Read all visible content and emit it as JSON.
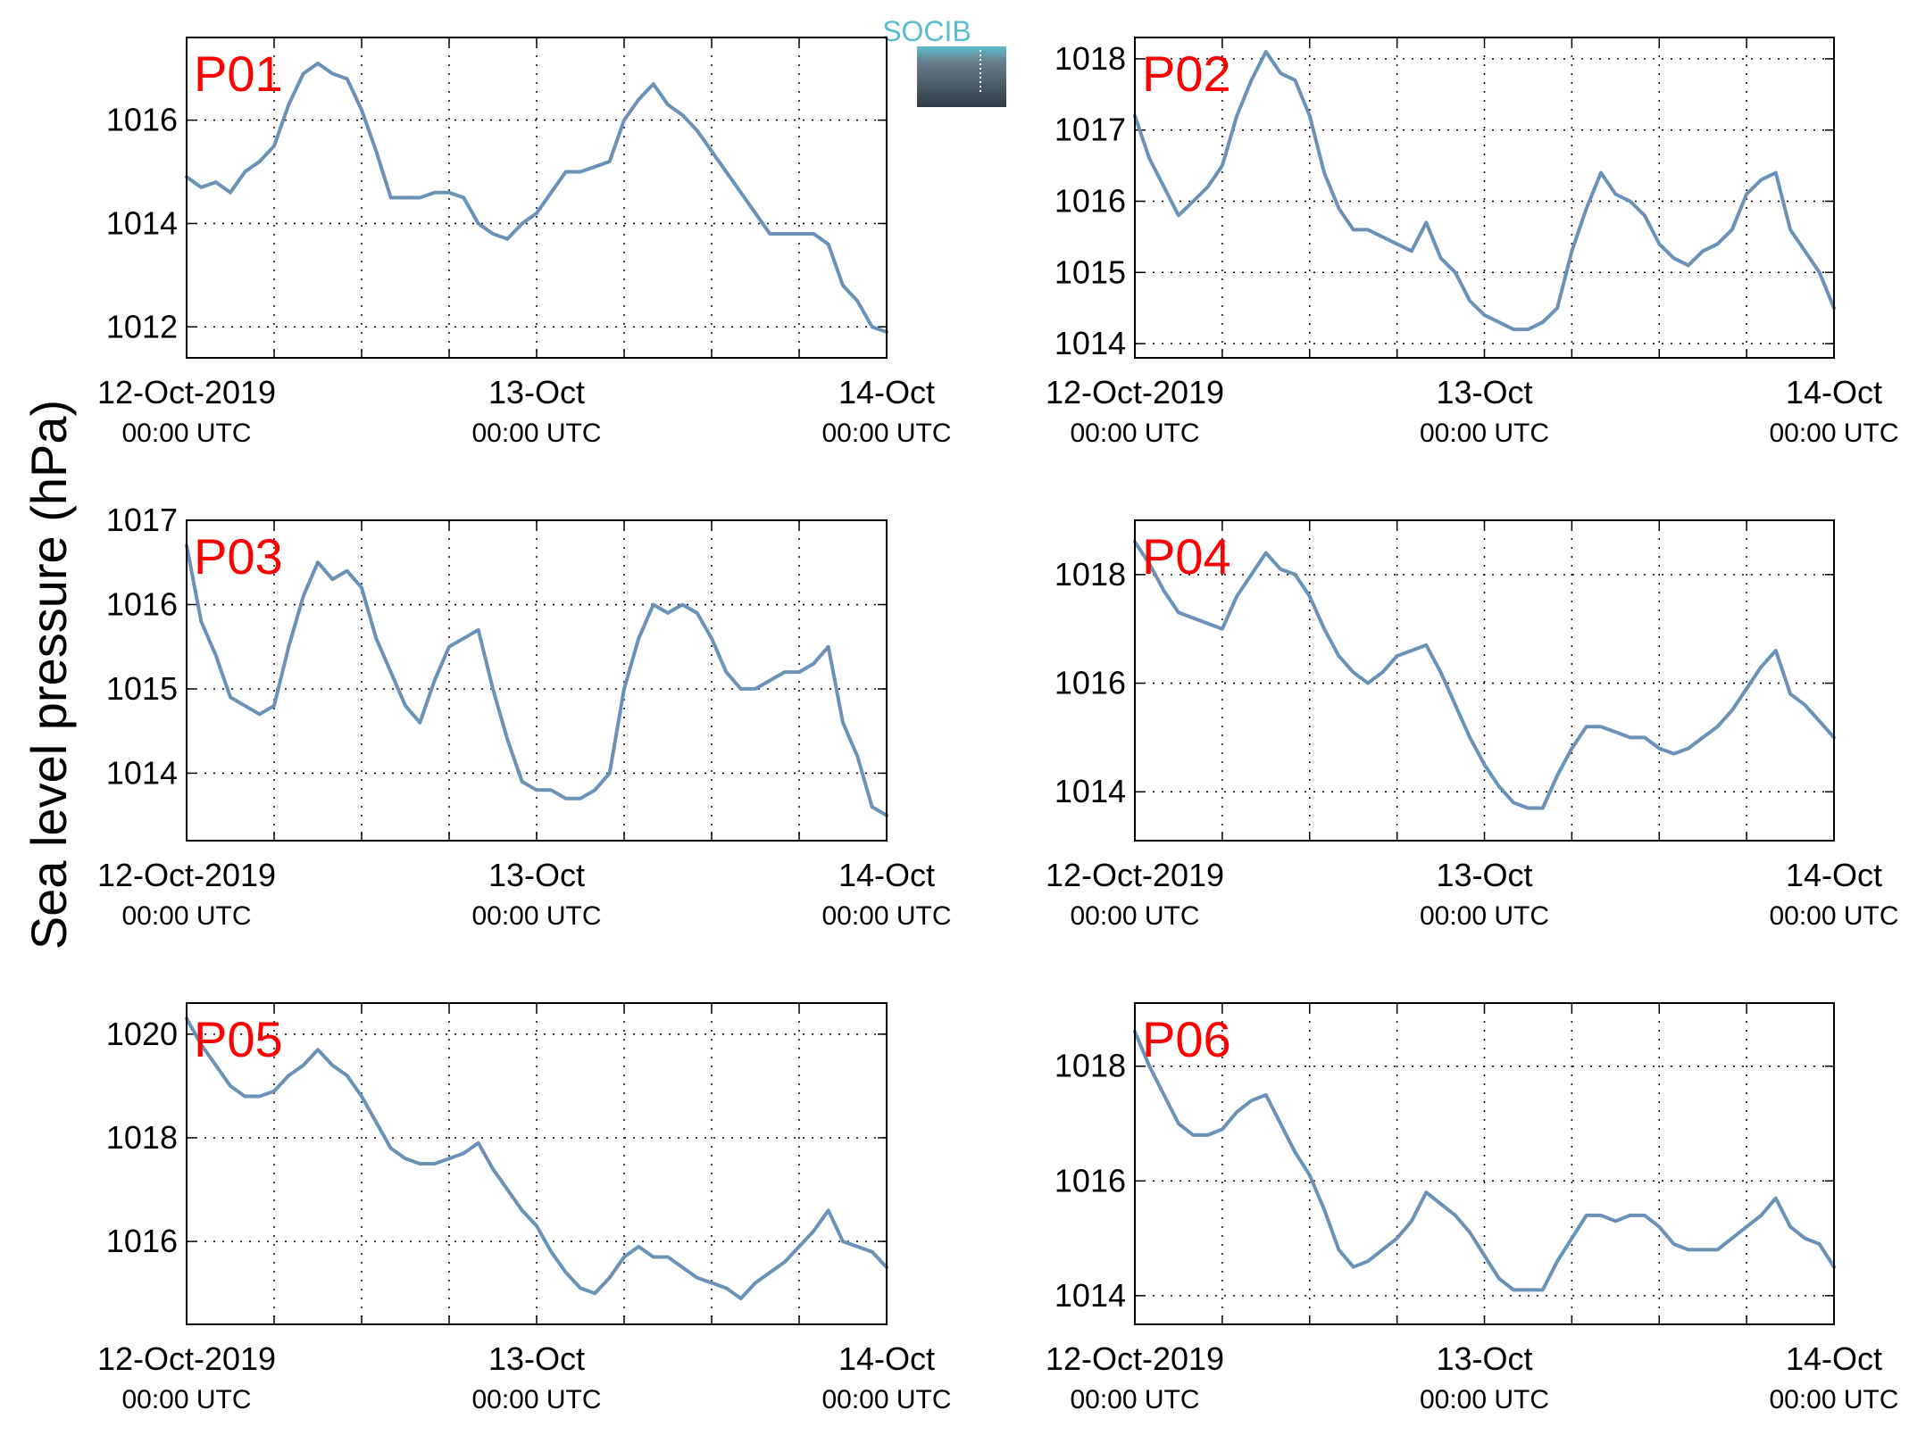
{
  "logo": {
    "text": "SOCIB",
    "color": "#5bbccc"
  },
  "ylabel": "Sea level pressure (hPa)",
  "colors": {
    "line": "#6a92b8",
    "label": "#ff0000"
  },
  "x_axis": {
    "ticks": [
      {
        "x": 0,
        "label": "12-Oct-2019",
        "sub": "00:00 UTC"
      },
      {
        "x": 24,
        "label": "13-Oct",
        "sub": "00:00 UTC"
      },
      {
        "x": 48,
        "label": "14-Oct",
        "sub": "00:00 UTC"
      }
    ],
    "grid_hours": [
      6,
      12,
      18,
      24,
      30,
      36,
      42
    ]
  },
  "chart_data": [
    {
      "type": "line",
      "name": "P01",
      "grid": true,
      "xlim": [
        0,
        48
      ],
      "ylim": [
        1011.4,
        1017.6
      ],
      "yticks": [
        1012,
        1014,
        1016
      ],
      "x": [
        0,
        1,
        2,
        3,
        4,
        5,
        6,
        7,
        8,
        9,
        10,
        11,
        12,
        13,
        14,
        15,
        16,
        17,
        18,
        19,
        20,
        21,
        22,
        23,
        24,
        25,
        26,
        27,
        28,
        29,
        30,
        31,
        32,
        33,
        34,
        35,
        36,
        37,
        38,
        39,
        40,
        41,
        42,
        43,
        44,
        45,
        46,
        47,
        48
      ],
      "values": [
        1014.9,
        1014.7,
        1014.8,
        1014.6,
        1015.0,
        1015.2,
        1015.5,
        1016.3,
        1016.9,
        1017.1,
        1016.9,
        1016.8,
        1016.2,
        1015.4,
        1014.5,
        1014.5,
        1014.5,
        1014.6,
        1014.6,
        1014.5,
        1014.0,
        1013.8,
        1013.7,
        1014.0,
        1014.2,
        1014.6,
        1015.0,
        1015.0,
        1015.1,
        1015.2,
        1016.0,
        1016.4,
        1016.7,
        1016.3,
        1016.1,
        1015.8,
        1015.4,
        1015.0,
        1014.6,
        1014.2,
        1013.8,
        1013.8,
        1013.8,
        1013.8,
        1013.6,
        1012.8,
        1012.5,
        1012.0,
        1011.9
      ]
    },
    {
      "type": "line",
      "name": "P02",
      "grid": true,
      "xlim": [
        0,
        48
      ],
      "ylim": [
        1013.8,
        1018.3
      ],
      "yticks": [
        1014,
        1015,
        1016,
        1017,
        1018
      ],
      "x": [
        0,
        1,
        2,
        3,
        4,
        5,
        6,
        7,
        8,
        9,
        10,
        11,
        12,
        13,
        14,
        15,
        16,
        17,
        18,
        19,
        20,
        21,
        22,
        23,
        24,
        25,
        26,
        27,
        28,
        29,
        30,
        31,
        32,
        33,
        34,
        35,
        36,
        37,
        38,
        39,
        40,
        41,
        42,
        43,
        44,
        45,
        46,
        47,
        48
      ],
      "values": [
        1017.2,
        1016.6,
        1016.2,
        1015.8,
        1016.0,
        1016.2,
        1016.5,
        1017.2,
        1017.7,
        1018.1,
        1017.8,
        1017.7,
        1017.2,
        1016.4,
        1015.9,
        1015.6,
        1015.6,
        1015.5,
        1015.4,
        1015.3,
        1015.7,
        1015.2,
        1015.0,
        1014.6,
        1014.4,
        1014.3,
        1014.2,
        1014.2,
        1014.3,
        1014.5,
        1015.3,
        1015.9,
        1016.4,
        1016.1,
        1016.0,
        1015.8,
        1015.4,
        1015.2,
        1015.1,
        1015.3,
        1015.4,
        1015.6,
        1016.1,
        1016.3,
        1016.4,
        1015.6,
        1015.3,
        1015.0,
        1014.5
      ]
    },
    {
      "type": "line",
      "name": "P03",
      "grid": true,
      "xlim": [
        0,
        48
      ],
      "ylim": [
        1013.2,
        1017.0
      ],
      "yticks": [
        1014,
        1015,
        1016,
        1017
      ],
      "x": [
        0,
        1,
        2,
        3,
        4,
        5,
        6,
        7,
        8,
        9,
        10,
        11,
        12,
        13,
        14,
        15,
        16,
        17,
        18,
        19,
        20,
        21,
        22,
        23,
        24,
        25,
        26,
        27,
        28,
        29,
        30,
        31,
        32,
        33,
        34,
        35,
        36,
        37,
        38,
        39,
        40,
        41,
        42,
        43,
        44,
        45,
        46,
        47,
        48
      ],
      "values": [
        1016.7,
        1015.8,
        1015.4,
        1014.9,
        1014.8,
        1014.7,
        1014.8,
        1015.5,
        1016.1,
        1016.5,
        1016.3,
        1016.4,
        1016.2,
        1015.6,
        1015.2,
        1014.8,
        1014.6,
        1015.1,
        1015.5,
        1015.6,
        1015.7,
        1015.0,
        1014.4,
        1013.9,
        1013.8,
        1013.8,
        1013.7,
        1013.7,
        1013.8,
        1014.0,
        1015.0,
        1015.6,
        1016.0,
        1015.9,
        1016.0,
        1015.9,
        1015.6,
        1015.2,
        1015.0,
        1015.0,
        1015.1,
        1015.2,
        1015.2,
        1015.3,
        1015.5,
        1014.6,
        1014.2,
        1013.6,
        1013.5
      ]
    },
    {
      "type": "line",
      "name": "P04",
      "grid": true,
      "xlim": [
        0,
        48
      ],
      "ylim": [
        1013.1,
        1019.0
      ],
      "yticks": [
        1014,
        1016,
        1018
      ],
      "x": [
        0,
        1,
        2,
        3,
        4,
        5,
        6,
        7,
        8,
        9,
        10,
        11,
        12,
        13,
        14,
        15,
        16,
        17,
        18,
        19,
        20,
        21,
        22,
        23,
        24,
        25,
        26,
        27,
        28,
        29,
        30,
        31,
        32,
        33,
        34,
        35,
        36,
        37,
        38,
        39,
        40,
        41,
        42,
        43,
        44,
        45,
        46,
        47,
        48
      ],
      "values": [
        1018.6,
        1018.2,
        1017.7,
        1017.3,
        1017.2,
        1017.1,
        1017.0,
        1017.6,
        1018.0,
        1018.4,
        1018.1,
        1018.0,
        1017.6,
        1017.0,
        1016.5,
        1016.2,
        1016.0,
        1016.2,
        1016.5,
        1016.6,
        1016.7,
        1016.2,
        1015.6,
        1015.0,
        1014.5,
        1014.1,
        1013.8,
        1013.7,
        1013.7,
        1014.3,
        1014.8,
        1015.2,
        1015.2,
        1015.1,
        1015.0,
        1015.0,
        1014.8,
        1014.7,
        1014.8,
        1015.0,
        1015.2,
        1015.5,
        1015.9,
        1016.3,
        1016.6,
        1015.8,
        1015.6,
        1015.3,
        1015.0
      ]
    },
    {
      "type": "line",
      "name": "P05",
      "grid": true,
      "xlim": [
        0,
        48
      ],
      "ylim": [
        1014.4,
        1020.6
      ],
      "yticks": [
        1016,
        1018,
        1020
      ],
      "x": [
        0,
        1,
        2,
        3,
        4,
        5,
        6,
        7,
        8,
        9,
        10,
        11,
        12,
        13,
        14,
        15,
        16,
        17,
        18,
        19,
        20,
        21,
        22,
        23,
        24,
        25,
        26,
        27,
        28,
        29,
        30,
        31,
        32,
        33,
        34,
        35,
        36,
        37,
        38,
        39,
        40,
        41,
        42,
        43,
        44,
        45,
        46,
        47,
        48
      ],
      "values": [
        1020.3,
        1019.8,
        1019.4,
        1019.0,
        1018.8,
        1018.8,
        1018.9,
        1019.2,
        1019.4,
        1019.7,
        1019.4,
        1019.2,
        1018.8,
        1018.3,
        1017.8,
        1017.6,
        1017.5,
        1017.5,
        1017.6,
        1017.7,
        1017.9,
        1017.4,
        1017.0,
        1016.6,
        1016.3,
        1015.8,
        1015.4,
        1015.1,
        1015.0,
        1015.3,
        1015.7,
        1015.9,
        1015.7,
        1015.7,
        1015.5,
        1015.3,
        1015.2,
        1015.1,
        1014.9,
        1015.2,
        1015.4,
        1015.6,
        1015.9,
        1016.2,
        1016.6,
        1016.0,
        1015.9,
        1015.8,
        1015.5
      ]
    },
    {
      "type": "line",
      "name": "P06",
      "grid": true,
      "xlim": [
        0,
        48
      ],
      "ylim": [
        1013.5,
        1019.1
      ],
      "yticks": [
        1014,
        1016,
        1018
      ],
      "x": [
        0,
        1,
        2,
        3,
        4,
        5,
        6,
        7,
        8,
        9,
        10,
        11,
        12,
        13,
        14,
        15,
        16,
        17,
        18,
        19,
        20,
        21,
        22,
        23,
        24,
        25,
        26,
        27,
        28,
        29,
        30,
        31,
        32,
        33,
        34,
        35,
        36,
        37,
        38,
        39,
        40,
        41,
        42,
        43,
        44,
        45,
        46,
        47,
        48
      ],
      "values": [
        1018.6,
        1018.0,
        1017.5,
        1017.0,
        1016.8,
        1016.8,
        1016.9,
        1017.2,
        1017.4,
        1017.5,
        1017.0,
        1016.5,
        1016.1,
        1015.5,
        1014.8,
        1014.5,
        1014.6,
        1014.8,
        1015.0,
        1015.3,
        1015.8,
        1015.6,
        1015.4,
        1015.1,
        1014.7,
        1014.3,
        1014.1,
        1014.1,
        1014.1,
        1014.6,
        1015.0,
        1015.4,
        1015.4,
        1015.3,
        1015.4,
        1015.4,
        1015.2,
        1014.9,
        1014.8,
        1014.8,
        1014.8,
        1015.0,
        1015.2,
        1015.4,
        1015.7,
        1015.2,
        1015.0,
        1014.9,
        1014.5
      ]
    }
  ]
}
